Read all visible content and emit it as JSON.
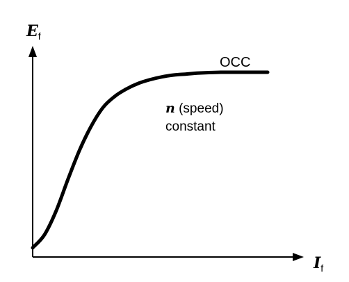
{
  "chart_data": {
    "type": "line",
    "title": "",
    "xlabel": "I",
    "xlabel_subscript": "f",
    "ylabel": "E",
    "ylabel_subscript": "f",
    "grid": false,
    "ticks": false,
    "series": [
      {
        "name": "OCC",
        "x": [
          0,
          0.05,
          0.1,
          0.15,
          0.2,
          0.25,
          0.3,
          0.35,
          0.4,
          0.45,
          0.5,
          0.55,
          0.6,
          0.65,
          0.7,
          0.75,
          0.8,
          0.85,
          0.9,
          0.95,
          1.0
        ],
        "y": [
          0.05,
          0.12,
          0.25,
          0.42,
          0.58,
          0.71,
          0.81,
          0.87,
          0.91,
          0.94,
          0.96,
          0.975,
          0.985,
          0.99,
          0.995,
          0.998,
          1.0,
          1.0,
          1.0,
          1.0,
          1.0
        ]
      }
    ],
    "annotations": {
      "curve_label": "OCC",
      "condition_var": "n",
      "condition_rest": "(speed)",
      "condition_line2": "constant"
    },
    "colors": {
      "line": "#000000",
      "axis": "#000000"
    }
  }
}
